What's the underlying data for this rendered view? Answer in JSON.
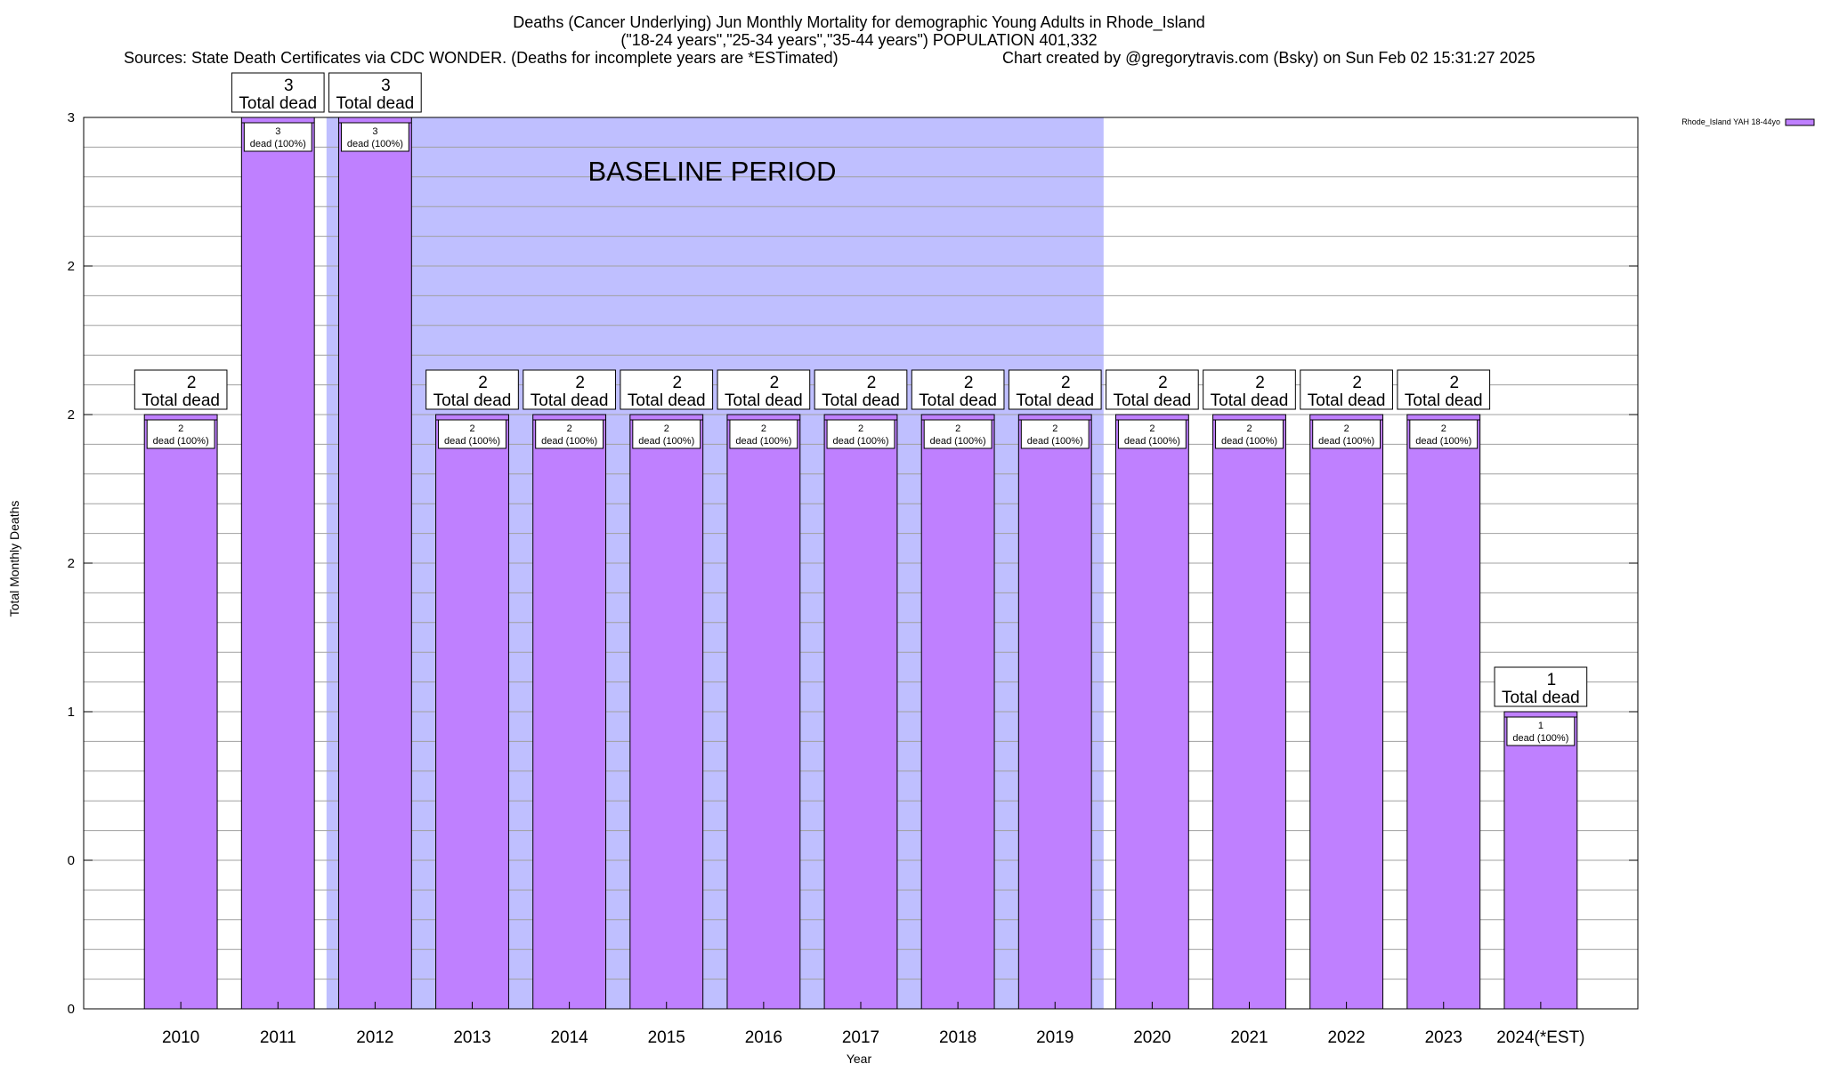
{
  "chart_data": {
    "type": "bar",
    "title_lines": [
      "Deaths (Cancer Underlying) Jun Monthly Mortality for demographic Young Adults in Rhode_Island",
      "(\"18-24 years\",\"25-34 years\",\"35-44 years\") POPULATION 401,332"
    ],
    "source_note": "Sources: State Death Certificates via CDC WONDER. (Deaths for incomplete years are *ESTimated)",
    "credit_note": "Chart created by @gregorytravis.com (Bsky) on Sun Feb 02 15:31:27 2025",
    "xlabel": "Year",
    "ylabel": "Total Monthly Deaths",
    "ylim": [
      0,
      3
    ],
    "y_ticks": [
      {
        "value": 0,
        "label": "0"
      },
      {
        "value": 0.5,
        "label": "0"
      },
      {
        "value": 1,
        "label": "1"
      },
      {
        "value": 1.5,
        "label": "2"
      },
      {
        "value": 2,
        "label": "2"
      },
      {
        "value": 2.5,
        "label": "2"
      },
      {
        "value": 3,
        "label": "3"
      }
    ],
    "minor_grid_step": 0.1,
    "grid": true,
    "categories": [
      "2010",
      "2011",
      "2012",
      "2013",
      "2014",
      "2015",
      "2016",
      "2017",
      "2018",
      "2019",
      "2020",
      "2021",
      "2022",
      "2023",
      "2024(*EST)"
    ],
    "series": [
      {
        "name": "Rhode_Island YAH 18-44yo",
        "color": "#bf80ff",
        "values": [
          2,
          3,
          3,
          2,
          2,
          2,
          2,
          2,
          2,
          2,
          2,
          2,
          2,
          2,
          1
        ]
      }
    ],
    "bar_labels": [
      {
        "count": "2",
        "text": "dead (100%)"
      },
      {
        "count": "3",
        "text": "dead (100%)"
      },
      {
        "count": "3",
        "text": "dead (100%)"
      },
      {
        "count": "2",
        "text": "dead (100%)"
      },
      {
        "count": "2",
        "text": "dead (100%)"
      },
      {
        "count": "2",
        "text": "dead (100%)"
      },
      {
        "count": "2",
        "text": "dead (100%)"
      },
      {
        "count": "2",
        "text": "dead (100%)"
      },
      {
        "count": "2",
        "text": "dead (100%)"
      },
      {
        "count": "2",
        "text": "dead (100%)"
      },
      {
        "count": "2",
        "text": "dead (100%)"
      },
      {
        "count": "2",
        "text": "dead (100%)"
      },
      {
        "count": "2",
        "text": "dead (100%)"
      },
      {
        "count": "2",
        "text": "dead (100%)"
      },
      {
        "count": "1",
        "text": "dead (100%)"
      }
    ],
    "total_labels": [
      {
        "count": "2",
        "text": "Total dead"
      },
      {
        "count": "3",
        "text": "Total dead"
      },
      {
        "count": "3",
        "text": "Total dead"
      },
      {
        "count": "2",
        "text": "Total dead"
      },
      {
        "count": "2",
        "text": "Total dead"
      },
      {
        "count": "2",
        "text": "Total dead"
      },
      {
        "count": "2",
        "text": "Total dead"
      },
      {
        "count": "2",
        "text": "Total dead"
      },
      {
        "count": "2",
        "text": "Total dead"
      },
      {
        "count": "2",
        "text": "Total dead"
      },
      {
        "count": "2",
        "text": "Total dead"
      },
      {
        "count": "2",
        "text": "Total dead"
      },
      {
        "count": "2",
        "text": "Total dead"
      },
      {
        "count": "2",
        "text": "Total dead"
      },
      {
        "count": "1",
        "text": "Total dead"
      }
    ],
    "baseline_period": {
      "label": "BASELINE PERIOD",
      "from": "2012",
      "to": "2019",
      "color": "#bfbfff"
    },
    "legend": {
      "position": "top-right outside",
      "entries": [
        {
          "label": "Rhode_Island YAH 18-44yo",
          "color": "#bf80ff"
        }
      ]
    },
    "colors": {
      "bar_fill": "#bf80ff",
      "baseline_fill": "#bfbfff",
      "grid": "#a0a0a0"
    }
  }
}
